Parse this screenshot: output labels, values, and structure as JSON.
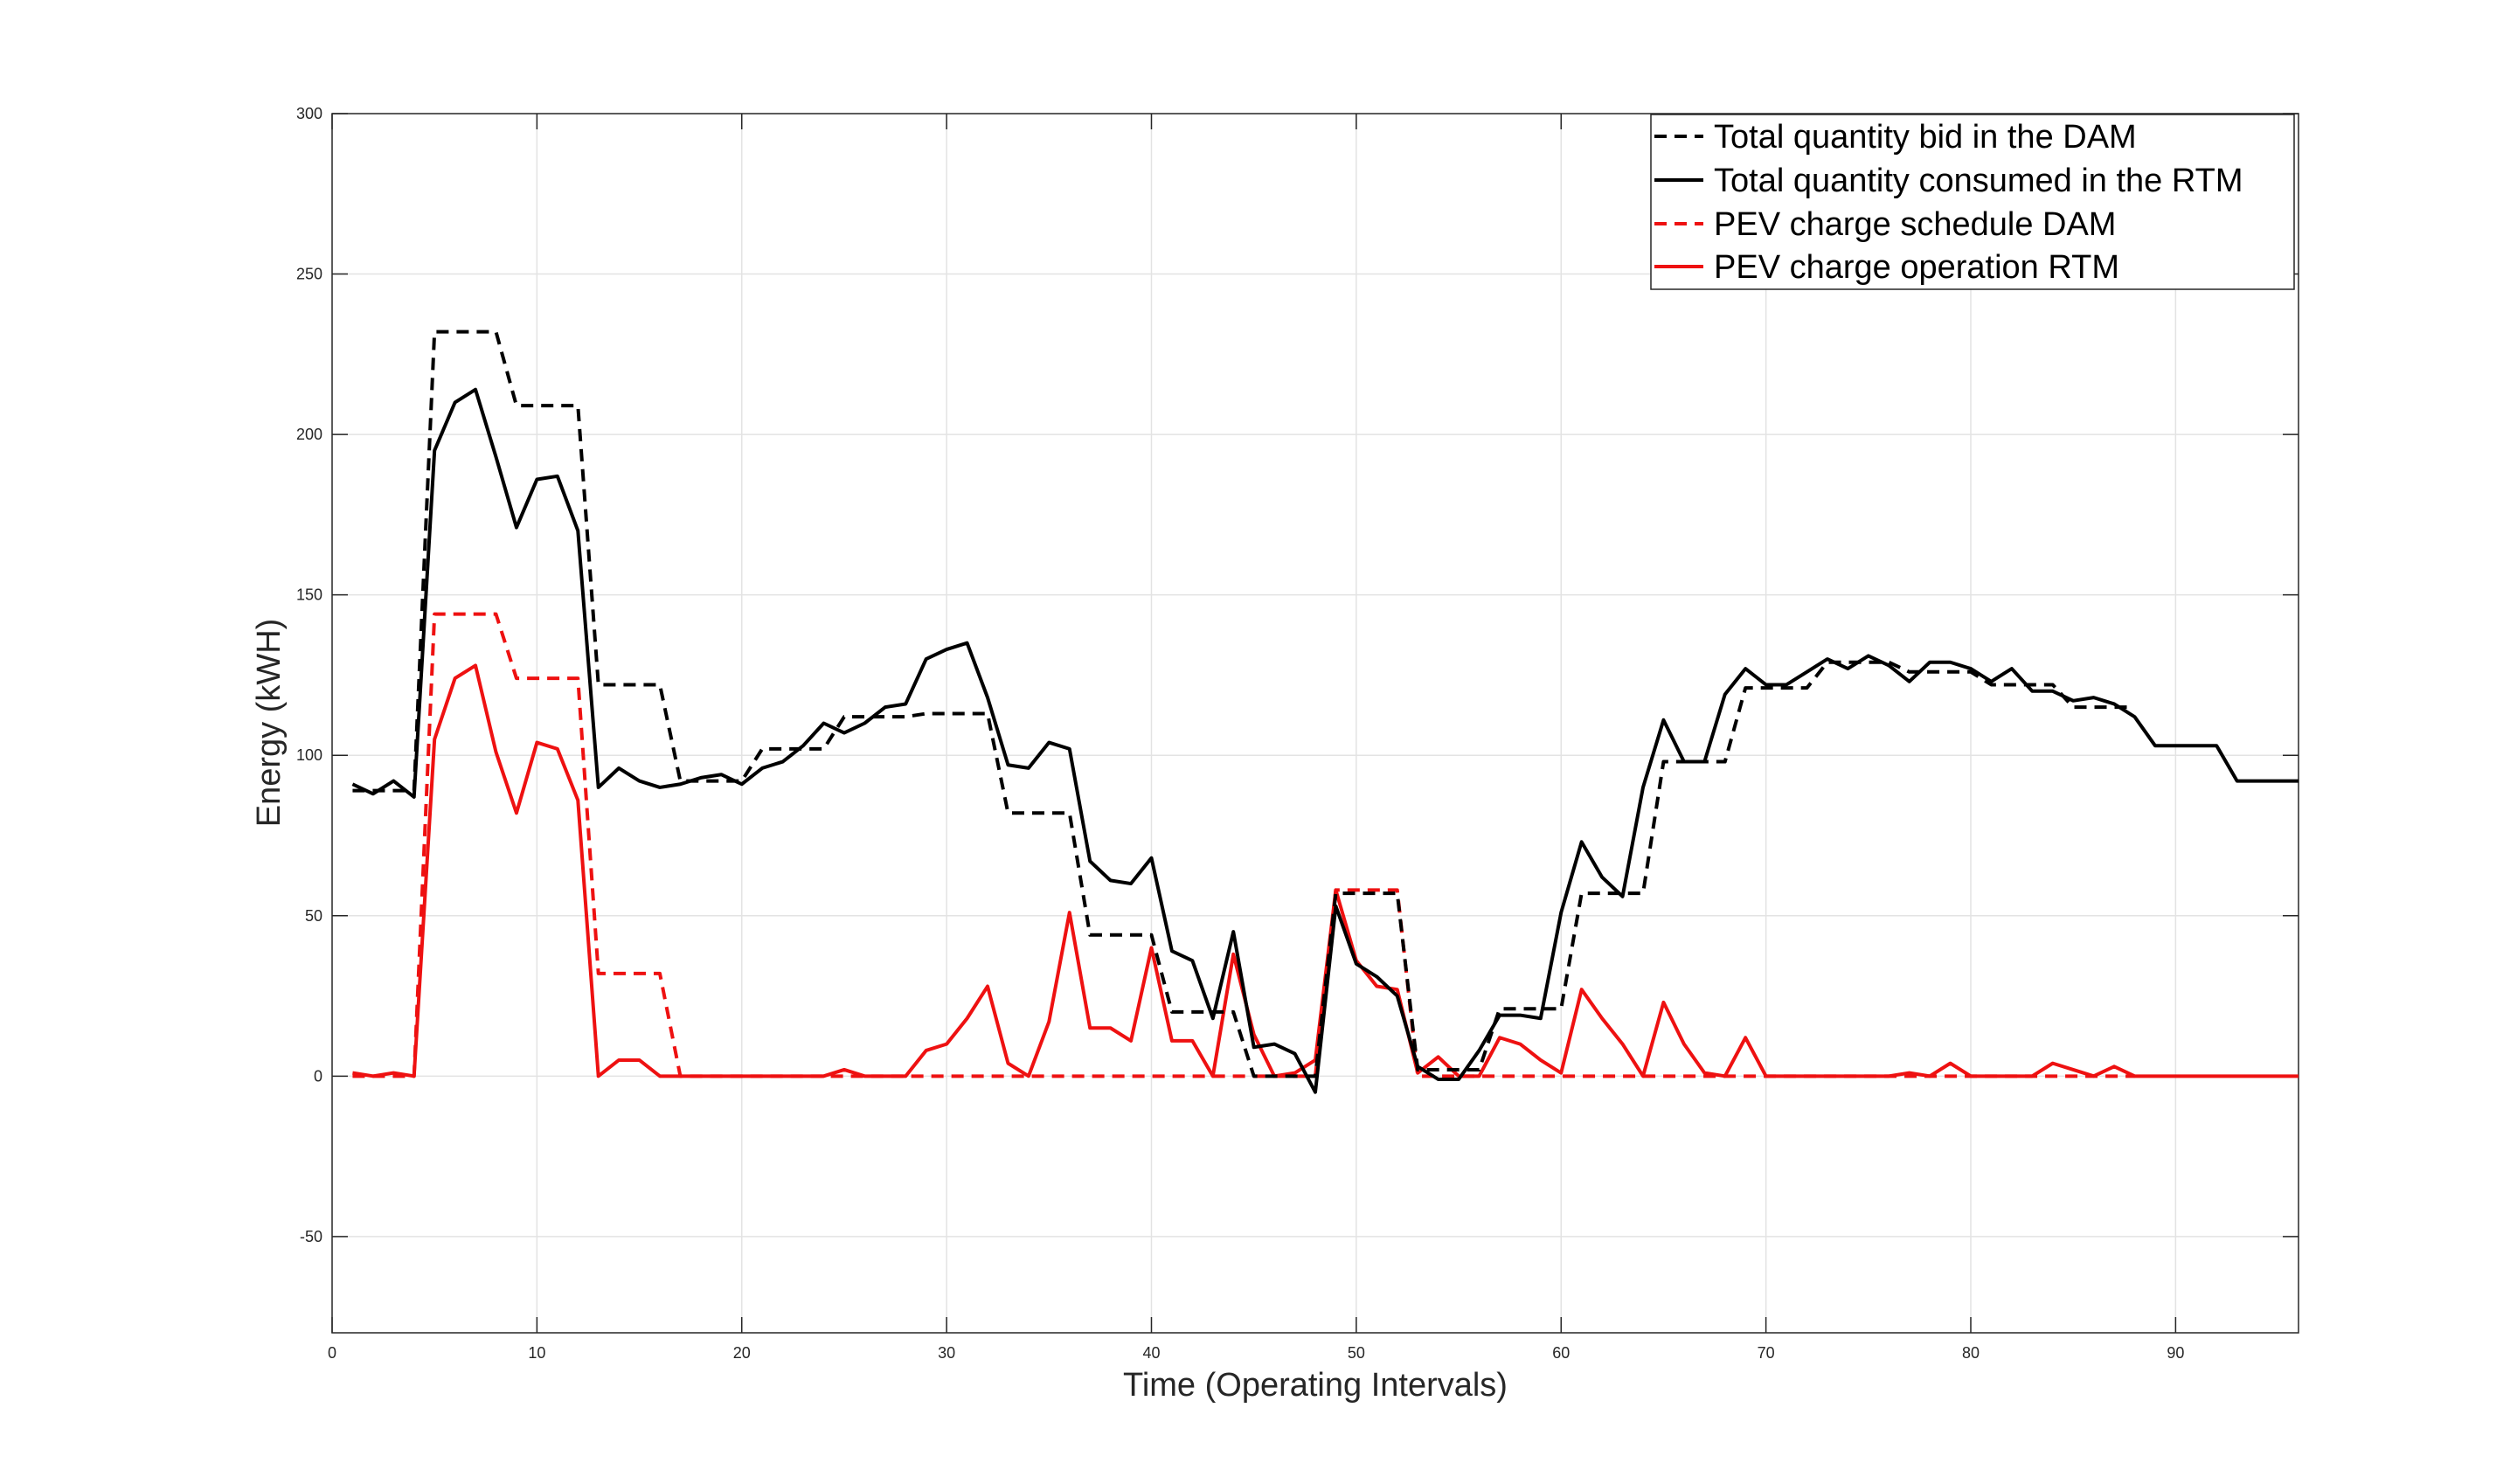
{
  "chart_data": {
    "type": "line",
    "title": "",
    "xlabel": "Time (Operating Intervals)",
    "ylabel": "Energy (kWH)",
    "xlim": [
      0,
      96
    ],
    "ylim": [
      -80,
      300
    ],
    "xticks": [
      0,
      10,
      20,
      30,
      40,
      50,
      60,
      70,
      80,
      90
    ],
    "yticks": [
      -50,
      0,
      50,
      100,
      150,
      200,
      250,
      300
    ],
    "grid": true,
    "legend_position": "top-right",
    "series": [
      {
        "name": "Total quantity bid in the DAM",
        "color": "#000000",
        "dash": "dashed",
        "x": [
          1,
          2,
          3,
          4,
          5,
          6,
          7,
          8,
          9,
          10,
          11,
          12,
          13,
          14,
          15,
          16,
          17,
          18,
          19,
          20,
          21,
          22,
          23,
          24,
          25,
          26,
          27,
          28,
          29,
          30,
          31,
          32,
          33,
          34,
          35,
          36,
          37,
          38,
          39,
          40,
          41,
          42,
          43,
          44,
          45,
          46,
          47,
          48,
          49,
          50,
          51,
          52,
          53,
          54,
          55,
          56,
          57,
          58,
          59,
          60,
          61,
          62,
          63,
          64,
          65,
          66,
          67,
          68,
          69,
          70,
          71,
          72,
          73,
          74,
          75,
          76,
          77,
          78,
          79,
          80,
          81,
          82,
          83,
          84,
          85,
          86,
          87,
          88
        ],
        "y": [
          89,
          89,
          89,
          89,
          232,
          232,
          232,
          232,
          209,
          209,
          209,
          209,
          122,
          122,
          122,
          122,
          92,
          92,
          92,
          92,
          102,
          102,
          102,
          102,
          112,
          112,
          112,
          112,
          113,
          113,
          113,
          113,
          82,
          82,
          82,
          82,
          44,
          44,
          44,
          44,
          20,
          20,
          20,
          20,
          0,
          0,
          0,
          0,
          57,
          57,
          57,
          57,
          2,
          2,
          2,
          2,
          21,
          21,
          21,
          21,
          57,
          57,
          57,
          57,
          98,
          98,
          98,
          98,
          121,
          121,
          121,
          121,
          129,
          129,
          129,
          129,
          126,
          126,
          126,
          126,
          122,
          122,
          122,
          122,
          115,
          115,
          115,
          115
        ]
      },
      {
        "name": "Total quantity consumed in the RTM",
        "color": "#000000",
        "dash": "solid",
        "x": [
          1,
          2,
          3,
          4,
          5,
          6,
          7,
          8,
          9,
          10,
          11,
          12,
          13,
          14,
          15,
          16,
          17,
          18,
          19,
          20,
          21,
          22,
          23,
          24,
          25,
          26,
          27,
          28,
          29,
          30,
          31,
          32,
          33,
          34,
          35,
          36,
          37,
          38,
          39,
          40,
          41,
          42,
          43,
          44,
          45,
          46,
          47,
          48,
          49,
          50,
          51,
          52,
          53,
          54,
          55,
          56,
          57,
          58,
          59,
          60,
          61,
          62,
          63,
          64,
          65,
          66,
          67,
          68,
          69,
          70,
          71,
          72,
          73,
          74,
          75,
          76,
          77,
          78,
          79,
          80,
          81,
          82,
          83,
          84,
          85,
          86,
          87,
          88,
          89,
          90,
          91,
          92,
          93,
          94,
          95,
          96
        ],
        "y": [
          91,
          88,
          92,
          87,
          195,
          210,
          214,
          193,
          171,
          186,
          187,
          170,
          90,
          96,
          92,
          90,
          91,
          93,
          94,
          91,
          96,
          98,
          103,
          110,
          107,
          110,
          115,
          116,
          130,
          133,
          135,
          118,
          97,
          96,
          104,
          102,
          67,
          61,
          60,
          68,
          39,
          36,
          18,
          45,
          9,
          10,
          7,
          -5,
          53,
          35,
          31,
          25,
          3,
          -1,
          -1,
          8,
          19,
          19,
          18,
          51,
          73,
          62,
          56,
          90,
          111,
          98,
          98,
          119,
          127,
          122,
          122,
          126,
          130,
          127,
          131,
          128,
          123,
          129,
          129,
          127,
          123,
          127,
          120,
          120,
          117,
          118,
          116,
          112,
          103,
          103,
          103,
          103,
          92,
          92,
          92,
          92
        ]
      },
      {
        "name": "PEV charge schedule DAM",
        "color": "#ee1111",
        "dash": "dashed",
        "x": [
          1,
          2,
          3,
          4,
          5,
          6,
          7,
          8,
          9,
          10,
          11,
          12,
          13,
          14,
          15,
          16,
          17,
          18,
          19,
          20,
          21,
          22,
          23,
          24,
          25,
          26,
          27,
          28,
          29,
          30,
          31,
          32,
          33,
          34,
          35,
          36,
          37,
          38,
          39,
          40,
          41,
          42,
          43,
          44,
          45,
          46,
          47,
          48,
          49,
          50,
          51,
          52,
          53,
          54,
          55,
          56,
          57,
          58,
          59,
          60,
          61,
          62,
          63,
          64,
          65,
          66,
          67,
          68,
          69,
          70,
          71,
          72,
          73,
          74,
          75,
          76,
          77,
          78,
          79,
          80,
          81,
          82,
          83,
          84,
          85,
          86,
          87,
          88
        ],
        "y": [
          0,
          0,
          0,
          0,
          144,
          144,
          144,
          144,
          124,
          124,
          124,
          124,
          32,
          32,
          32,
          32,
          0,
          0,
          0,
          0,
          0,
          0,
          0,
          0,
          0,
          0,
          0,
          0,
          0,
          0,
          0,
          0,
          0,
          0,
          0,
          0,
          0,
          0,
          0,
          0,
          0,
          0,
          0,
          0,
          0,
          0,
          0,
          0,
          58,
          58,
          58,
          58,
          0,
          0,
          0,
          0,
          0,
          0,
          0,
          0,
          0,
          0,
          0,
          0,
          0,
          0,
          0,
          0,
          0,
          0,
          0,
          0,
          0,
          0,
          0,
          0,
          0,
          0,
          0,
          0,
          0,
          0,
          0,
          0,
          0,
          0,
          0,
          0
        ]
      },
      {
        "name": "PEV charge operation RTM",
        "color": "#ee1111",
        "dash": "solid",
        "x": [
          1,
          2,
          3,
          4,
          5,
          6,
          7,
          8,
          9,
          10,
          11,
          12,
          13,
          14,
          15,
          16,
          17,
          18,
          19,
          20,
          21,
          22,
          23,
          24,
          25,
          26,
          27,
          28,
          29,
          30,
          31,
          32,
          33,
          34,
          35,
          36,
          37,
          38,
          39,
          40,
          41,
          42,
          43,
          44,
          45,
          46,
          47,
          48,
          49,
          50,
          51,
          52,
          53,
          54,
          55,
          56,
          57,
          58,
          59,
          60,
          61,
          62,
          63,
          64,
          65,
          66,
          67,
          68,
          69,
          70,
          71,
          72,
          73,
          74,
          75,
          76,
          77,
          78,
          79,
          80,
          81,
          82,
          83,
          84,
          85,
          86,
          87,
          88,
          89,
          90,
          91,
          92,
          93,
          94,
          95,
          96
        ],
        "y": [
          1,
          0,
          1,
          0,
          105,
          124,
          128,
          101,
          82,
          104,
          102,
          86,
          0,
          5,
          5,
          0,
          0,
          0,
          0,
          0,
          0,
          0,
          0,
          0,
          2,
          0,
          0,
          0,
          8,
          10,
          18,
          28,
          4,
          0,
          17,
          51,
          15,
          15,
          11,
          40,
          11,
          11,
          0,
          38,
          13,
          0,
          1,
          5,
          58,
          36,
          28,
          27,
          1,
          6,
          0,
          0,
          12,
          10,
          5,
          1,
          27,
          18,
          10,
          0,
          23,
          10,
          1,
          0,
          12,
          0,
          0,
          0,
          0,
          0,
          0,
          0,
          1,
          0,
          4,
          0,
          0,
          0,
          0,
          4,
          2,
          0,
          3,
          0,
          0,
          0,
          0,
          0,
          0,
          0,
          0,
          0
        ]
      }
    ]
  }
}
